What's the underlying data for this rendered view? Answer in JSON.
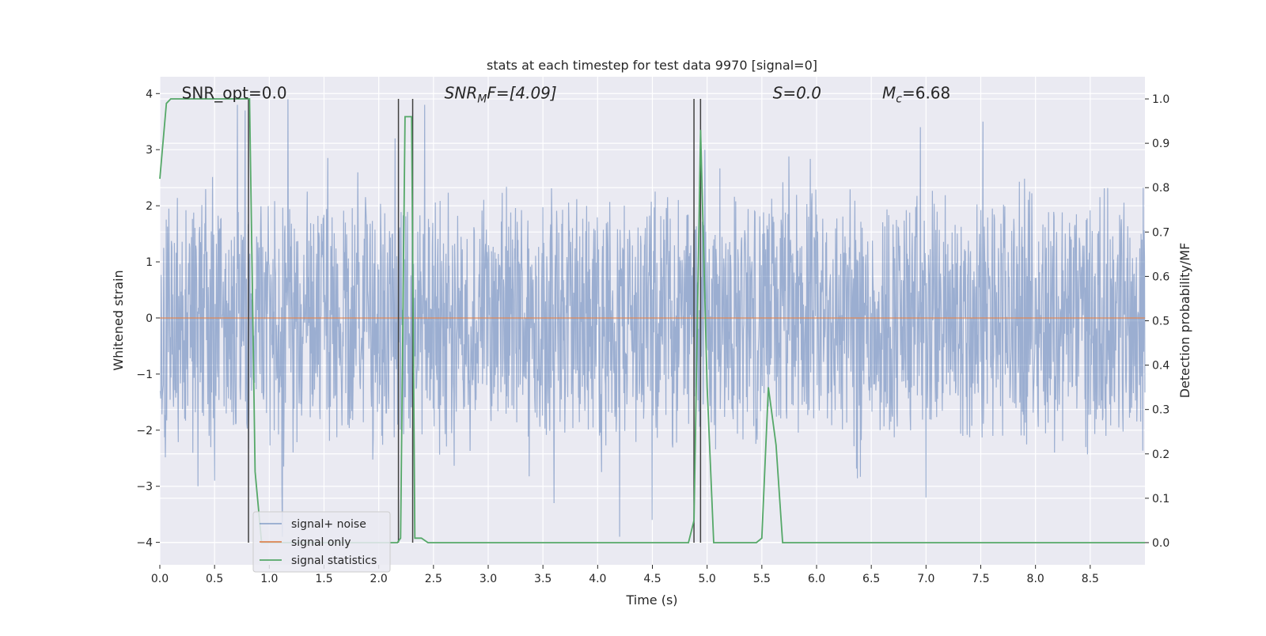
{
  "chart_data": {
    "type": "line",
    "title": "stats at each timestep for test data 9970 [signal=0]",
    "xlabel": "Time (s)",
    "ylabel": "Whitened strain",
    "ylabel_right": "Detection probability/MF",
    "xlim": [
      0.0,
      9.0
    ],
    "ylim": [
      -4.4,
      4.3
    ],
    "ylim_right": [
      -0.05,
      1.05
    ],
    "x_ticks": [
      0.0,
      0.5,
      1.0,
      1.5,
      2.0,
      2.5,
      3.0,
      3.5,
      4.0,
      4.5,
      5.0,
      5.5,
      6.0,
      6.5,
      7.0,
      7.5,
      8.0,
      8.5
    ],
    "x_tick_labels": [
      "0.0",
      "0.5",
      "1.0",
      "1.5",
      "2.0",
      "2.5",
      "3.0",
      "3.5",
      "4.0",
      "4.5",
      "5.0",
      "5.5",
      "6.0",
      "6.5",
      "7.0",
      "7.5",
      "8.0",
      "8.5"
    ],
    "y_ticks": [
      -4,
      -3,
      -2,
      -1,
      0,
      1,
      2,
      3,
      4
    ],
    "y_tick_labels": [
      "−4",
      "−3",
      "−2",
      "−1",
      "0",
      "1",
      "2",
      "3",
      "4"
    ],
    "y_right_ticks": [
      0.0,
      0.1,
      0.2,
      0.3,
      0.4,
      0.5,
      0.6,
      0.7,
      0.8,
      0.9,
      1.0
    ],
    "y_right_tick_labels": [
      "0.0",
      "0.1",
      "0.2",
      "0.3",
      "0.4",
      "0.5",
      "0.6",
      "0.7",
      "0.8",
      "0.9",
      "1.0"
    ],
    "grid": true,
    "legend_position": "lower-left",
    "annotations": [
      {
        "text": "SNR_opt=0.0",
        "x": 0.2,
        "y": 4.0
      },
      {
        "text": "SNR",
        "sub": "M",
        "rest": "F=[4.09]",
        "x": 2.6,
        "y": 4.0,
        "italic": true
      },
      {
        "text": "S=0.0",
        "x": 5.6,
        "y": 4.0,
        "italic": true
      },
      {
        "text": "M",
        "sub": "c",
        "rest": "=6.68",
        "x": 6.6,
        "y": 4.0,
        "italic": true
      }
    ],
    "series": [
      {
        "name": "signal+ noise",
        "color": "#4c72b0",
        "axis": "left",
        "description": "whitened noisy strain, approx within −2.5..2.5 with spikes to ±3.9",
        "peaks": [
          {
            "x": 0.71,
            "y": 3.8
          },
          {
            "x": 0.78,
            "y": 3.7
          },
          {
            "x": 1.17,
            "y": 3.9
          },
          {
            "x": 2.15,
            "y": 3.2
          },
          {
            "x": 2.42,
            "y": 3.8
          },
          {
            "x": 4.98,
            "y": 3.0
          },
          {
            "x": 7.52,
            "y": 3.5
          },
          {
            "x": 6.95,
            "y": 3.4
          },
          {
            "x": 1.12,
            "y": -3.9
          },
          {
            "x": 4.5,
            "y": -3.6
          },
          {
            "x": 4.2,
            "y": -3.9
          },
          {
            "x": 3.6,
            "y": -3.3
          },
          {
            "x": 7.0,
            "y": -3.2
          },
          {
            "x": 0.35,
            "y": -3.0
          },
          {
            "x": 0.5,
            "y": -2.9
          }
        ]
      },
      {
        "name": "signal only",
        "color": "#dd8452",
        "axis": "left",
        "x": [
          0.0,
          9.0
        ],
        "y": [
          0.0,
          0.0
        ]
      },
      {
        "name": "signal statistics",
        "color": "#55a868",
        "axis": "right",
        "x": [
          0.0,
          0.06,
          0.1,
          0.8,
          0.82,
          0.87,
          0.93,
          2.17,
          2.2,
          2.24,
          2.3,
          2.33,
          2.39,
          2.45,
          4.83,
          4.88,
          4.94,
          5.0,
          5.06,
          5.45,
          5.5,
          5.56,
          5.63,
          5.69,
          9.0
        ],
        "y": [
          0.82,
          0.99,
          1.0,
          1.0,
          1.0,
          0.16,
          0.0,
          0.0,
          0.01,
          0.96,
          0.96,
          0.01,
          0.01,
          0.0,
          0.0,
          0.05,
          0.93,
          0.35,
          0.0,
          0.0,
          0.01,
          0.35,
          0.22,
          0.0,
          0.0
        ]
      }
    ],
    "vlines": [
      0.81,
      2.18,
      2.31,
      4.88,
      4.94
    ],
    "vline_color": "#404040"
  }
}
